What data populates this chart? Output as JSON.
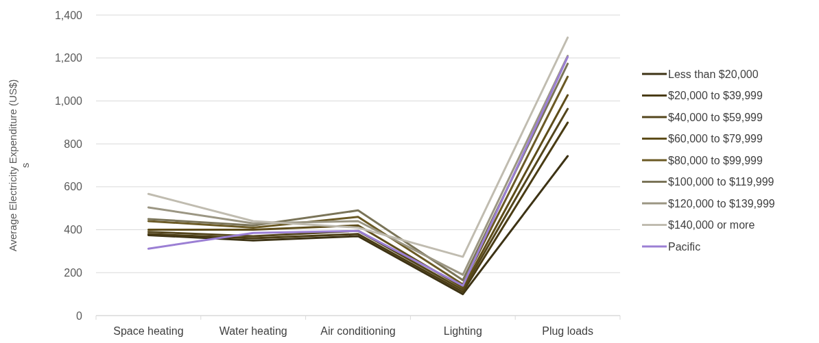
{
  "chart_data": {
    "type": "line",
    "ylabel": "Average Electricity Expenditure (US$)\ns",
    "categories": [
      "Space heating",
      "Water heating",
      "Air conditioning",
      "Lighting",
      "Plug loads"
    ],
    "ylim": [
      0,
      1400
    ],
    "yticks": [
      0,
      {
        "value": 200,
        "label": "200"
      },
      {
        "value": 400,
        "label": "400"
      },
      {
        "value": 600,
        "label": "600"
      },
      {
        "value": 800,
        "label": "800"
      },
      {
        "value": 1000,
        "label": "1,000"
      },
      {
        "value": 1200,
        "label": "1,200"
      },
      {
        "value": 1400,
        "label": "1,400"
      }
    ],
    "grid": "y",
    "legend": "right",
    "marker": "none",
    "line_style": "solid",
    "series": [
      {
        "name": "Less than $20,000",
        "color": "#3d3315",
        "values": [
          375,
          350,
          370,
          100,
          743
        ]
      },
      {
        "name": "$20,000 to $39,999",
        "color": "#4a3c14",
        "values": [
          380,
          360,
          380,
          110,
          899
        ]
      },
      {
        "name": "$40,000 to $59,999",
        "color": "#54461c",
        "values": [
          390,
          370,
          395,
          120,
          963
        ]
      },
      {
        "name": "$60,000 to $79,999",
        "color": "#5e4d1a",
        "values": [
          400,
          400,
          420,
          130,
          1027
        ]
      },
      {
        "name": "$80,000 to $99,999",
        "color": "#6b5a25",
        "values": [
          440,
          410,
          460,
          145,
          1113
        ]
      },
      {
        "name": "$100,000 to $119,999",
        "color": "#7a7458",
        "values": [
          450,
          420,
          490,
          165,
          1173
        ]
      },
      {
        "name": "$120,000 to $139,999",
        "color": "#9b9683",
        "values": [
          504,
          430,
          440,
          190,
          1210
        ]
      },
      {
        "name": "$140,000 or more",
        "color": "#c0bcb0",
        "values": [
          567,
          440,
          410,
          274,
          1295
        ]
      },
      {
        "name": "Pacific",
        "color": "#9b7fd4",
        "values": [
          312,
          385,
          395,
          140,
          1205
        ]
      }
    ]
  }
}
